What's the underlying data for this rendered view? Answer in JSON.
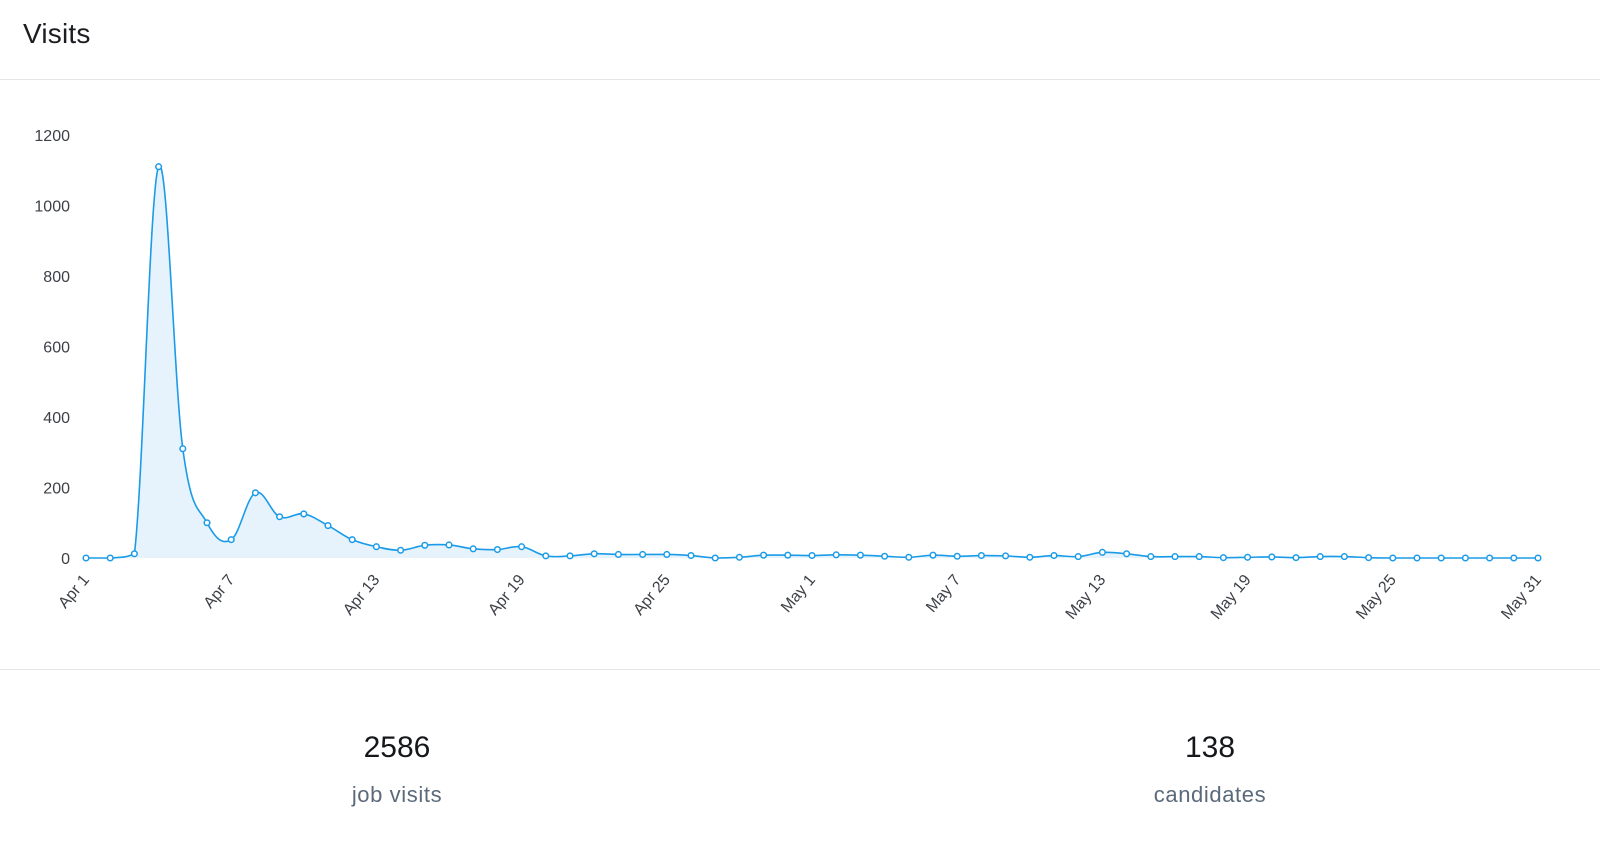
{
  "header": {
    "title": "Visits"
  },
  "chart_data": {
    "type": "area",
    "title": "",
    "xlabel": "",
    "ylabel": "",
    "ylim": [
      0,
      1200
    ],
    "yticks": [
      0,
      200,
      400,
      600,
      800,
      1000,
      1200
    ],
    "x": [
      "Apr 1",
      "Apr 2",
      "Apr 3",
      "Apr 4",
      "Apr 5",
      "Apr 6",
      "Apr 7",
      "Apr 8",
      "Apr 9",
      "Apr 10",
      "Apr 11",
      "Apr 12",
      "Apr 13",
      "Apr 14",
      "Apr 15",
      "Apr 16",
      "Apr 17",
      "Apr 18",
      "Apr 19",
      "Apr 20",
      "Apr 21",
      "Apr 22",
      "Apr 23",
      "Apr 24",
      "Apr 25",
      "Apr 26",
      "Apr 27",
      "Apr 28",
      "Apr 29",
      "Apr 30",
      "May 1",
      "May 2",
      "May 3",
      "May 4",
      "May 5",
      "May 6",
      "May 7",
      "May 8",
      "May 9",
      "May 10",
      "May 11",
      "May 12",
      "May 13",
      "May 14",
      "May 15",
      "May 16",
      "May 17",
      "May 18",
      "May 19",
      "May 20",
      "May 21",
      "May 22",
      "May 23",
      "May 24",
      "May 25",
      "May 26",
      "May 27",
      "May 28",
      "May 29",
      "May 30",
      "May 31"
    ],
    "xtick_labels": [
      "Apr 1",
      "Apr 7",
      "Apr 13",
      "Apr 19",
      "Apr 25",
      "May 1",
      "May 7",
      "May 13",
      "May 19",
      "May 25",
      "May 31"
    ],
    "series": [
      {
        "values": [
          0,
          0,
          12,
          1110,
          310,
          100,
          52,
          185,
          117,
          125,
          92,
          52,
          32,
          22,
          36,
          37,
          26,
          24,
          32,
          6,
          6,
          12,
          10,
          10,
          10,
          7,
          0,
          2,
          8,
          8,
          7,
          9,
          8,
          5,
          2,
          8,
          5,
          7,
          6,
          2,
          7,
          4,
          16,
          12,
          4,
          4,
          4,
          1,
          2,
          3,
          1,
          4,
          4,
          1,
          0,
          0,
          0,
          0,
          0,
          0,
          0
        ]
      }
    ],
    "grid": false,
    "legend": "none",
    "line_color": "#1a9be8",
    "fill_color": "#e6f3fc"
  },
  "stats": {
    "visits_value": "2586",
    "visits_label": "job visits",
    "candidates_value": "138",
    "candidates_label": "candidates"
  }
}
